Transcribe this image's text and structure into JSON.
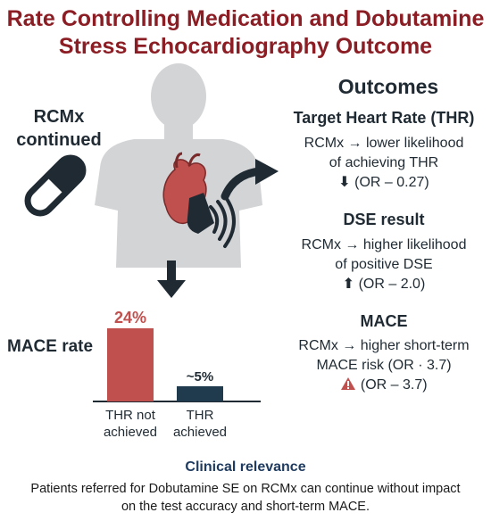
{
  "title": {
    "line1": "Rate Controlling Medication and Dobutamine",
    "line2": "Stress Echocardiography Outcome"
  },
  "rcmx_label": {
    "line1": "RCMx",
    "line2": "continued"
  },
  "outcomes": {
    "heading": "Outcomes",
    "thr": {
      "title": "Target Heart Rate (THR)",
      "line1": "RCMx → lower likelihood",
      "line2": "of achieving THR",
      "or": "(OR – 0.27)",
      "arrow": "down-arrow-icon"
    },
    "dse": {
      "title": "DSE result",
      "line1": "RCMx → higher likelihood",
      "line2": "of positive DSE",
      "or": "(OR – 2.0)",
      "arrow": "up-arrow-icon"
    },
    "mace": {
      "title": "MACE",
      "line1": "RCMx → higher short-term",
      "line2": "MACE risk (OR · 3.7)",
      "or": "(OR – 3.7)",
      "icon": "warning-icon"
    }
  },
  "chart_data": {
    "type": "bar",
    "title": "MACE rate",
    "categories": [
      "THR not achieved",
      "THR achieved"
    ],
    "values": [
      24,
      5
    ],
    "value_labels": [
      "24%",
      "~5%"
    ],
    "colors": [
      "#c0504d",
      "#1f3b4d"
    ]
  },
  "clinical": {
    "heading": "Clinical relevance",
    "line1": "Patients referred for Dobutamine SE on RCMx can continue without impact",
    "line2": "on the test accuracy and short-term MACE."
  },
  "colors": {
    "title": "#8b1d24",
    "heart": "#c0504d",
    "dark": "#1f3b4d",
    "silhouette": "#d3d4d6"
  }
}
